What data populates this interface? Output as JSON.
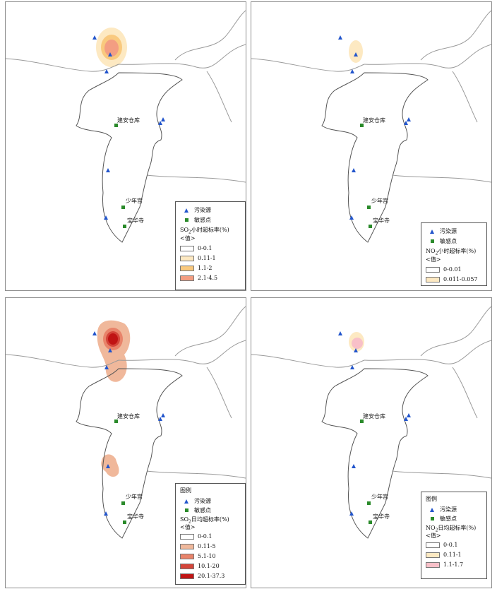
{
  "panels": [
    {
      "id": "so2-hourly",
      "legend": {
        "heading": "",
        "source_label": "污染源",
        "receptor_label": "敏感点",
        "title_pre": "SO",
        "title_sub": "2",
        "title_post": "小时超标率(%)",
        "value_label": "<值>",
        "classes": [
          {
            "range": "0-0.1",
            "color": "#ffffff"
          },
          {
            "range": "0.11-1",
            "color": "#fde9c2"
          },
          {
            "range": "1.1-2",
            "color": "#f9c97e"
          },
          {
            "range": "2.1-4.5",
            "color": "#f39e82"
          }
        ]
      }
    },
    {
      "id": "no2-hourly",
      "legend": {
        "heading": "",
        "source_label": "污染源",
        "receptor_label": "敏感点",
        "title_pre": "NO",
        "title_sub": "2",
        "title_post": "小时超标率(%)",
        "value_label": "<值>",
        "classes": [
          {
            "range": "0-0.01",
            "color": "#ffffff"
          },
          {
            "range": "0.011-0.057",
            "color": "#fde9c2"
          }
        ]
      }
    },
    {
      "id": "so2-daily",
      "legend": {
        "heading": "图例",
        "source_label": "污染源",
        "receptor_label": "敏感点",
        "title_pre": "SO",
        "title_sub": "2",
        "title_post": "日均超标率(%)",
        "value_label": "<值>",
        "classes": [
          {
            "range": "0-0.1",
            "color": "#ffffff"
          },
          {
            "range": "0.11-5",
            "color": "#f0b89b"
          },
          {
            "range": "5.1-10",
            "color": "#e8836a"
          },
          {
            "range": "10.1-20",
            "color": "#d4453a"
          },
          {
            "range": "20.1-37.3",
            "color": "#c01414"
          }
        ]
      }
    },
    {
      "id": "no2-daily",
      "legend": {
        "heading": "图例",
        "source_label": "污染源",
        "receptor_label": "敏感点",
        "title_pre": "NO",
        "title_sub": "2",
        "title_post": "日均超标率(%)",
        "value_label": "<值>",
        "classes": [
          {
            "range": "0-0.1",
            "color": "#ffffff"
          },
          {
            "range": "0.11-1",
            "color": "#fde9c2"
          },
          {
            "range": "1.1-1.7",
            "color": "#f8c0c8"
          }
        ]
      }
    }
  ],
  "places": {
    "warehouse": "建安仓库",
    "palace": "少年宫",
    "temple": "宝华寺"
  },
  "colors": {
    "source": "#2255cc",
    "receptor": "#2a8a2a",
    "boundary": "#9a9a9a",
    "district": "#555555"
  }
}
